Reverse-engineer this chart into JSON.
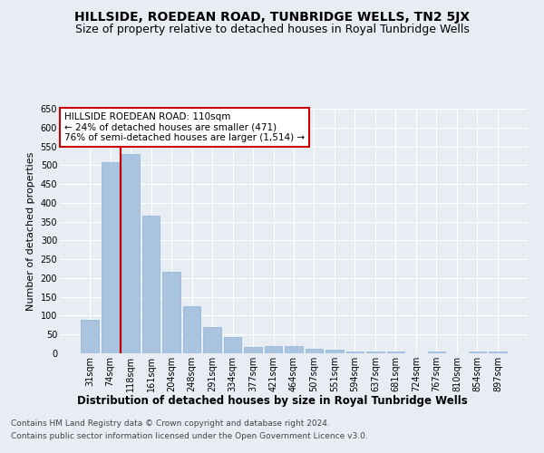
{
  "title": "HILLSIDE, ROEDEAN ROAD, TUNBRIDGE WELLS, TN2 5JX",
  "subtitle": "Size of property relative to detached houses in Royal Tunbridge Wells",
  "xlabel": "Distribution of detached houses by size in Royal Tunbridge Wells",
  "ylabel": "Number of detached properties",
  "categories": [
    "31sqm",
    "74sqm",
    "118sqm",
    "161sqm",
    "204sqm",
    "248sqm",
    "291sqm",
    "334sqm",
    "377sqm",
    "421sqm",
    "464sqm",
    "507sqm",
    "551sqm",
    "594sqm",
    "637sqm",
    "681sqm",
    "724sqm",
    "767sqm",
    "810sqm",
    "854sqm",
    "897sqm"
  ],
  "values": [
    90,
    507,
    530,
    365,
    217,
    125,
    70,
    43,
    16,
    19,
    19,
    12,
    10,
    6,
    5,
    5,
    0,
    5,
    0,
    5,
    5
  ],
  "bar_color": "#aac4e0",
  "bar_edge_color": "#8ab4d4",
  "highlight_line_color": "#cc0000",
  "annotation_text": "HILLSIDE ROEDEAN ROAD: 110sqm\n← 24% of detached houses are smaller (471)\n76% of semi-detached houses are larger (1,514) →",
  "annotation_box_color": "#ffffff",
  "annotation_box_edge_color": "#cc0000",
  "ylim": [
    0,
    650
  ],
  "yticks": [
    0,
    50,
    100,
    150,
    200,
    250,
    300,
    350,
    400,
    450,
    500,
    550,
    600,
    650
  ],
  "background_color": "#e8edf4",
  "plot_bg_color": "#e8edf4",
  "grid_color": "#ffffff",
  "footer_line1": "Contains HM Land Registry data © Crown copyright and database right 2024.",
  "footer_line2": "Contains public sector information licensed under the Open Government Licence v3.0.",
  "title_fontsize": 10,
  "subtitle_fontsize": 9,
  "xlabel_fontsize": 8.5,
  "ylabel_fontsize": 8,
  "tick_fontsize": 7,
  "annotation_fontsize": 7.5,
  "footer_fontsize": 6.5
}
